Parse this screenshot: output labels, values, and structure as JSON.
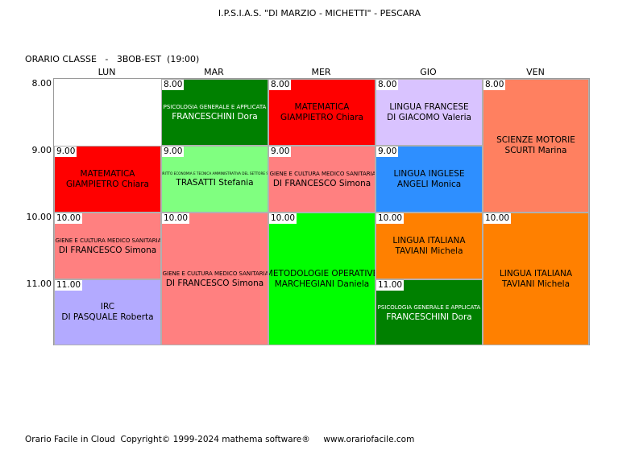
{
  "header": {
    "school": "I.P.S.I.A.S. \"DI MARZIO - MICHETTI\" - PESCARA",
    "class_label": "ORARIO CLASSE   -   3BOB-EST  (19:00)"
  },
  "days": [
    "LUN",
    "MAR",
    "MER",
    "GIO",
    "VEN"
  ],
  "hours": [
    "8.00",
    "9.00",
    "10.00",
    "11.00"
  ],
  "lessons": [
    {
      "time": "9.00",
      "subject": "MATEMATICA",
      "teacher": "GIAMPIETRO Chiara",
      "color": "#ff0000"
    },
    {
      "time": "10.00",
      "subject": "IGIENE E CULTURA MEDICO SANITARIA",
      "teacher": "DI FRANCESCO Simona",
      "color": "#ff8080"
    },
    {
      "time": "11.00",
      "subject": "IRC",
      "teacher": "DI PASQUALE Roberta",
      "color": "#b3aaff"
    },
    {
      "time": "8.00",
      "subject": "PSICOLOGIA GENERALE E APPLICATA",
      "teacher": "FRANCESCHINI Dora",
      "color": "#008000"
    },
    {
      "time": "9.00",
      "subject": "DIRITTO ECONOMIA E TECNICA AMMINISTRATIVA DEL SETTORE SS",
      "teacher": "TRASATTI Stefania",
      "color": "#80ff80"
    },
    {
      "time": "10.00",
      "subject": "IGIENE E CULTURA MEDICO SANITARIA",
      "teacher": "DI FRANCESCO Simona",
      "color": "#ff8080"
    },
    {
      "time": "8.00",
      "subject": "MATEMATICA",
      "teacher": "GIAMPIETRO Chiara",
      "color": "#ff0000"
    },
    {
      "time": "9.00",
      "subject": "IGIENE E CULTURA MEDICO SANITARIA",
      "teacher": "DI FRANCESCO Simona",
      "color": "#ff8080"
    },
    {
      "time": "10.00",
      "subject": "METODOLOGIE OPERATIVE",
      "teacher": "MARCHEGIANI Daniela",
      "color": "#00ff00"
    },
    {
      "time": "8.00",
      "subject": "LINGUA FRANCESE",
      "teacher": "DI GIACOMO Valeria",
      "color": "#d9c3ff"
    },
    {
      "time": "9.00",
      "subject": "LINGUA INGLESE",
      "teacher": "ANGELI Monica",
      "color": "#2e8fff"
    },
    {
      "time": "10.00",
      "subject": "LINGUA ITALIANA",
      "teacher": "TAVIANI Michela",
      "color": "#ff8000"
    },
    {
      "time": "11.00",
      "subject": "PSICOLOGIA GENERALE E APPLICATA",
      "teacher": "FRANCESCHINI Dora",
      "color": "#008000"
    },
    {
      "time": "8.00",
      "subject": "SCIENZE MOTORIE",
      "teacher": "SCURTI Marina",
      "color": "#ff8060"
    },
    {
      "time": "10.00",
      "subject": "LINGUA ITALIANA",
      "teacher": "TAVIANI Michela",
      "color": "#ff8000"
    }
  ],
  "footer": "Orario Facile in Cloud  Copyright© 1999-2024 mathema software®     www.orariofacile.com"
}
